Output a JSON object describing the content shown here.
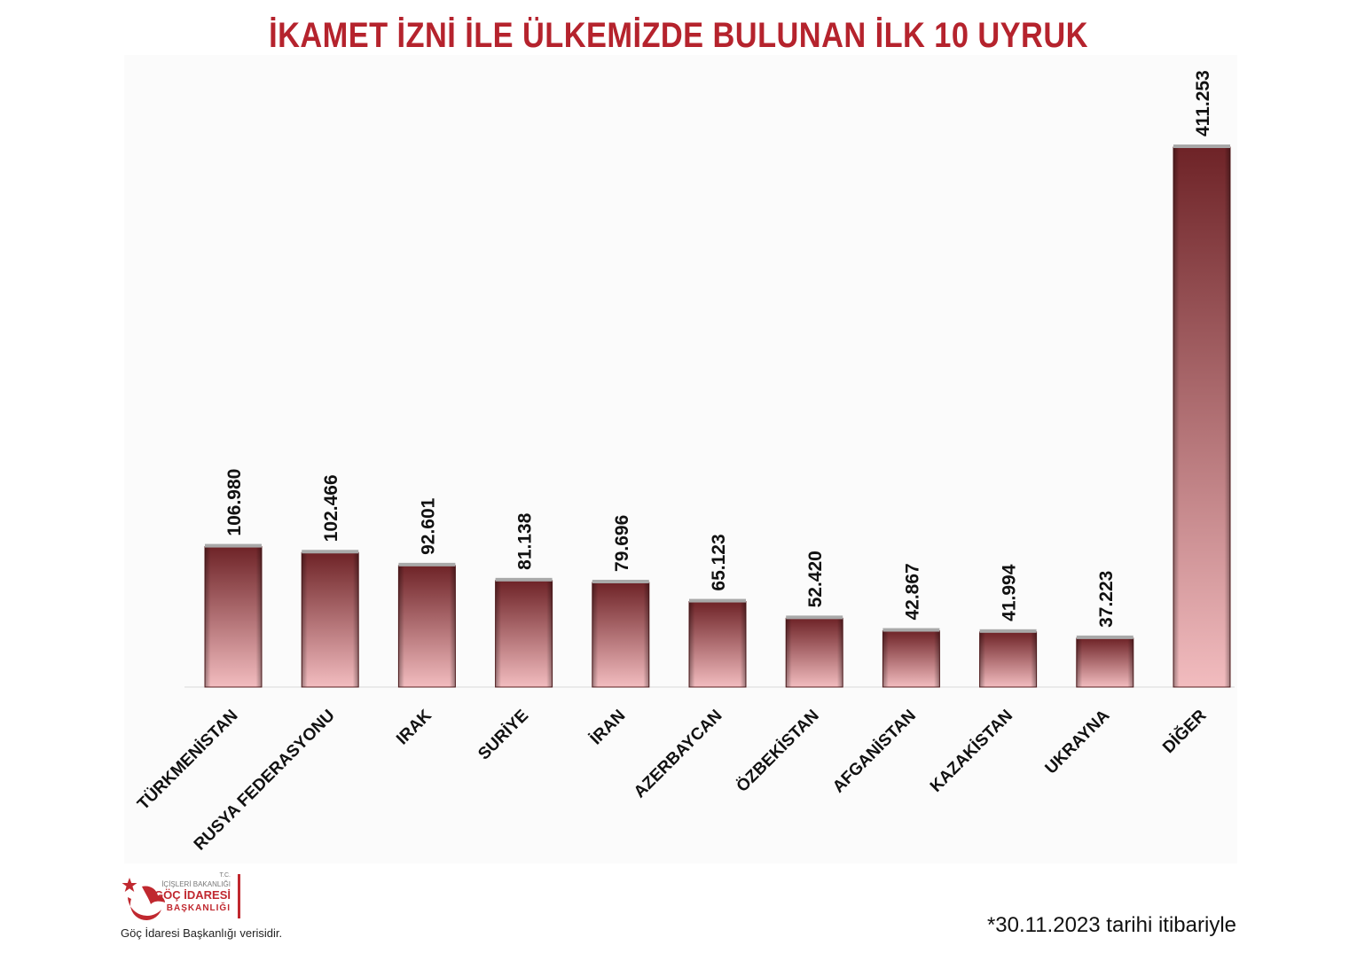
{
  "chart_data": {
    "type": "bar",
    "title": "İKAMET İZNİ İLE ÜLKEMİZDE BULUNAN İLK 10 UYRUK",
    "categories": [
      "TÜRKMENİSTAN",
      "RUSYA FEDERASYONU",
      "IRAK",
      "SURİYE",
      "İRAN",
      "AZERBAYCAN",
      "ÖZBEKİSTAN",
      "AFGANİSTAN",
      "KAZAKİSTAN",
      "UKRAYNA",
      "DİĞER"
    ],
    "values": [
      106980,
      102466,
      92601,
      81138,
      79696,
      65123,
      52420,
      42867,
      41994,
      37223,
      411253
    ],
    "value_labels": [
      "106.980",
      "102.466",
      "92.601",
      "81.138",
      "79.696",
      "65.123",
      "52.420",
      "42.867",
      "41.994",
      "37.223",
      "411.253"
    ],
    "ylim": [
      0,
      411253
    ],
    "grid": false,
    "bar_color_top": "#6e2327",
    "bar_color_bottom": "#f2bcbf",
    "title_color": "#b5232d"
  },
  "logo": {
    "tc": "T.C.",
    "ministry": "İÇİŞLERİ BAKANLIĞI",
    "agency": "GÖÇ İDARESİ",
    "department": "BAŞKANLIĞI",
    "icon": "crescent-star-bird-icon"
  },
  "footer": {
    "source": "Göç İdaresi Başkanlığı verisidir.",
    "date_note": "*30.11.2023 tarihi itibariyle"
  }
}
